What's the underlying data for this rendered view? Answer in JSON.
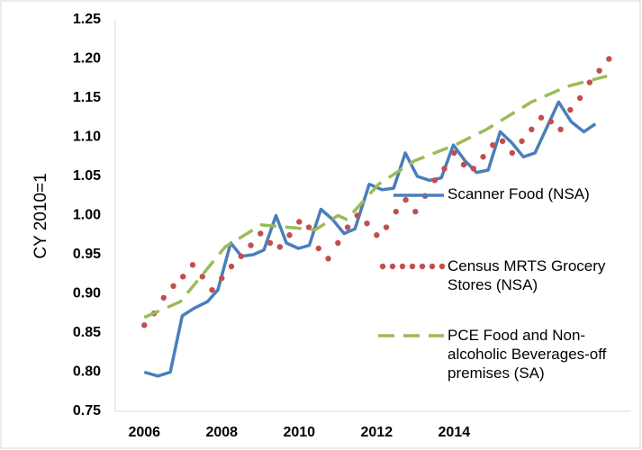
{
  "chart_data": {
    "type": "line",
    "y_label": "CY 2010=1",
    "xlim": [
      2005.25,
      2018.55
    ],
    "xticks": [
      2006,
      2008,
      2010,
      2012,
      2014
    ],
    "ylim": [
      0.75,
      1.25
    ],
    "yticks": [
      0.75,
      {
        "value": 0.8,
        "label": "0.80"
      },
      0.85,
      {
        "value": 0.9,
        "label": "0.90"
      },
      0.95,
      {
        "value": 1.0,
        "label": "1.00"
      },
      1.05,
      {
        "value": 1.1,
        "label": "1.10"
      },
      1.15,
      {
        "value": 1.2,
        "label": "1.20"
      },
      1.25
    ],
    "grid": false,
    "series": [
      {
        "name": "Scanner Food (NSA)",
        "color": "#4a7ebb",
        "style": "solid",
        "x": [
          2006.0,
          2006.35,
          2006.67,
          2006.98,
          2007.3,
          2007.63,
          2007.9,
          2008.23,
          2008.51,
          2008.81,
          2009.09,
          2009.4,
          2009.67,
          2009.98,
          2010.26,
          2010.56,
          2010.86,
          2011.16,
          2011.44,
          2011.81,
          2012.14,
          2012.44,
          2012.74,
          2013.05,
          2013.37,
          2013.67,
          2013.98,
          2014.28,
          2014.58,
          2014.88,
          2015.19,
          2015.49,
          2015.79,
          2016.09,
          2016.7,
          2017.02,
          2017.35,
          2017.65
        ],
        "values": [
          0.8,
          0.795,
          0.8,
          0.872,
          0.882,
          0.89,
          0.905,
          0.965,
          0.948,
          0.95,
          0.956,
          1.0,
          0.965,
          0.958,
          0.962,
          1.008,
          0.995,
          0.977,
          0.983,
          1.04,
          1.033,
          1.035,
          1.08,
          1.05,
          1.045,
          1.048,
          1.09,
          1.07,
          1.055,
          1.058,
          1.107,
          1.093,
          1.075,
          1.08,
          1.145,
          1.12,
          1.107,
          1.117
        ]
      },
      {
        "name": "Census MRTS Grocery Stores (NSA)",
        "color": "#c0504d",
        "style": "dots",
        "x": [
          2006.0,
          2006.25,
          2006.5,
          2006.75,
          2007.0,
          2007.25,
          2007.5,
          2007.75,
          2008.0,
          2008.25,
          2008.5,
          2008.75,
          2009.0,
          2009.25,
          2009.5,
          2009.75,
          2010.0,
          2010.25,
          2010.5,
          2010.75,
          2011.0,
          2011.25,
          2011.5,
          2011.75,
          2012.0,
          2012.25,
          2012.5,
          2012.75,
          2013.0,
          2013.25,
          2013.5,
          2013.75,
          2014.0,
          2014.25,
          2014.5,
          2014.75,
          2015.0,
          2015.25,
          2015.5,
          2015.75,
          2016.0,
          2016.25,
          2016.5,
          2016.75,
          2017.0,
          2017.25,
          2017.5,
          2017.75,
          2018.0
        ],
        "values": [
          0.86,
          0.875,
          0.895,
          0.91,
          0.922,
          0.937,
          0.922,
          0.905,
          0.92,
          0.935,
          0.948,
          0.962,
          0.977,
          0.965,
          0.96,
          0.975,
          0.992,
          0.985,
          0.958,
          0.945,
          0.965,
          0.985,
          1.0,
          0.99,
          0.975,
          0.985,
          1.005,
          1.02,
          1.005,
          1.025,
          1.045,
          1.06,
          1.08,
          1.065,
          1.06,
          1.075,
          1.09,
          1.095,
          1.08,
          1.095,
          1.11,
          1.125,
          1.12,
          1.11,
          1.135,
          1.15,
          1.17,
          1.185,
          1.2
        ]
      },
      {
        "name": "PCE Food and Non-alcoholic Beverages-off premises (SA)",
        "color": "#9bbb59",
        "style": "dashed",
        "x": [
          2006.0,
          2006.93,
          2008.09,
          2009.02,
          2009.72,
          2010.42,
          2011.0,
          2011.23,
          2012.05,
          2012.98,
          2014.02,
          2014.84,
          2016.0,
          2016.93,
          2017.95
        ],
        "values": [
          0.87,
          0.89,
          0.96,
          0.988,
          0.985,
          0.982,
          1.0,
          0.995,
          1.04,
          1.07,
          1.09,
          1.11,
          1.145,
          1.165,
          1.178
        ]
      }
    ]
  }
}
